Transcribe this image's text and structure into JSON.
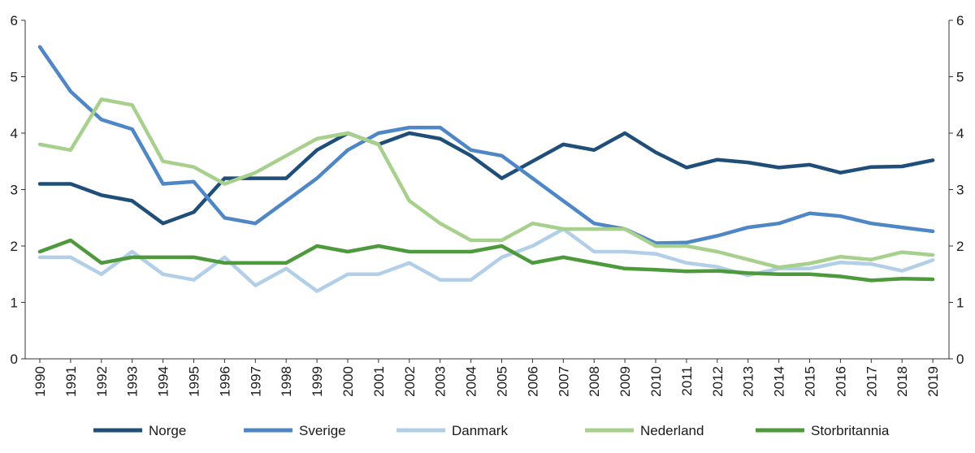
{
  "chart_data": {
    "type": "line",
    "title": "",
    "xlabel": "",
    "ylabel": "",
    "ylim": [
      0,
      6
    ],
    "yticks": [
      0,
      1,
      2,
      3,
      4,
      5,
      6
    ],
    "secondary_y_axis": true,
    "grid": false,
    "legend_position": "bottom",
    "categories": [
      "1990",
      "1991",
      "1992",
      "1993",
      "1994",
      "1995",
      "1996",
      "1997",
      "1998",
      "1999",
      "2000",
      "2001",
      "2002",
      "2003",
      "2004",
      "2005",
      "2006",
      "2007",
      "2008",
      "2009",
      "2010",
      "2011",
      "2012",
      "2013",
      "2014",
      "2015",
      "2016",
      "2017",
      "2018",
      "2019"
    ],
    "series": [
      {
        "name": "Norge",
        "color": "#1f4e79",
        "values": [
          3.1,
          3.1,
          2.9,
          2.8,
          2.4,
          2.6,
          3.2,
          3.2,
          3.2,
          3.7,
          4.0,
          3.8,
          4.0,
          3.9,
          3.6,
          3.2,
          3.5,
          3.8,
          3.7,
          4.0,
          3.66,
          3.39,
          3.53,
          3.48,
          3.39,
          3.44,
          3.3,
          3.4,
          3.41,
          3.52
        ]
      },
      {
        "name": "Sverige",
        "color": "#4f86c6",
        "values": [
          5.53,
          4.74,
          4.24,
          4.07,
          3.1,
          3.14,
          2.5,
          2.4,
          2.8,
          3.2,
          3.7,
          4.0,
          4.1,
          4.1,
          3.7,
          3.6,
          3.2,
          2.8,
          2.4,
          2.3,
          2.05,
          2.06,
          2.18,
          2.33,
          2.4,
          2.58,
          2.53,
          2.4,
          2.33,
          2.26
        ]
      },
      {
        "name": "Danmark",
        "color": "#b3cfe8",
        "values": [
          1.8,
          1.8,
          1.5,
          1.9,
          1.5,
          1.4,
          1.8,
          1.3,
          1.6,
          1.2,
          1.5,
          1.5,
          1.7,
          1.4,
          1.4,
          1.8,
          2.0,
          2.3,
          1.9,
          1.9,
          1.86,
          1.7,
          1.63,
          1.48,
          1.6,
          1.6,
          1.71,
          1.68,
          1.56,
          1.75
        ]
      },
      {
        "name": "Nederland",
        "color": "#a8d08d",
        "values": [
          3.8,
          3.7,
          4.6,
          4.5,
          3.5,
          3.4,
          3.1,
          3.3,
          3.6,
          3.9,
          4.0,
          3.8,
          2.8,
          2.4,
          2.1,
          2.1,
          2.4,
          2.3,
          2.3,
          2.3,
          2.0,
          2.0,
          1.9,
          1.76,
          1.62,
          1.69,
          1.81,
          1.76,
          1.89,
          1.84
        ]
      },
      {
        "name": "Storbritannia",
        "color": "#4d9a3c",
        "values": [
          1.9,
          2.1,
          1.7,
          1.8,
          1.8,
          1.8,
          1.7,
          1.7,
          1.7,
          2.0,
          1.9,
          2.0,
          1.9,
          1.9,
          1.9,
          2.0,
          1.7,
          1.8,
          1.7,
          1.6,
          1.58,
          1.55,
          1.56,
          1.52,
          1.5,
          1.5,
          1.46,
          1.39,
          1.42,
          1.41
        ]
      }
    ]
  }
}
